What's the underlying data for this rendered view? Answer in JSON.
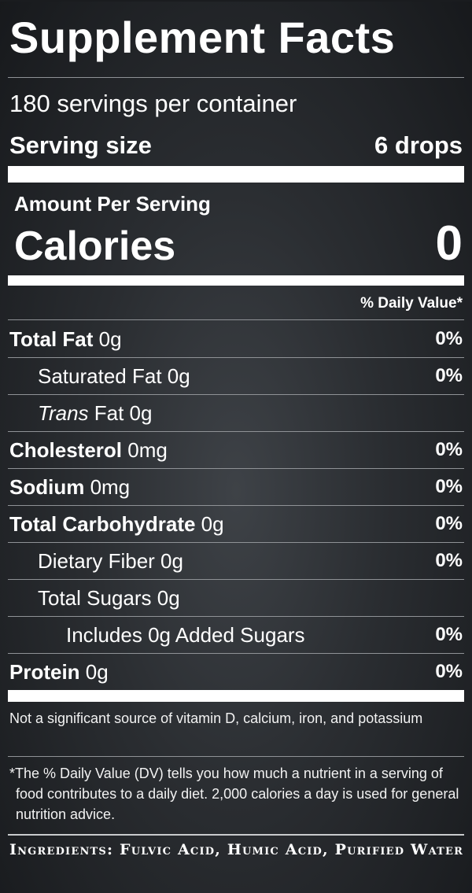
{
  "panel": {
    "title": "Supplement Facts",
    "servings_per_container": "180 servings per container",
    "serving_size_label": "Serving size",
    "serving_size_value": "6 drops",
    "amount_per_serving": "Amount Per Serving",
    "calories_label": "Calories",
    "calories_value": "0",
    "daily_value_header": "% Daily Value*",
    "nutrients": [
      {
        "name": "Total Fat",
        "amount": " 0g",
        "dv": "0%"
      },
      {
        "name": "Saturated Fat 0g",
        "amount": "",
        "dv": "0%"
      },
      {
        "name": "Trans",
        "amount": " Fat 0g",
        "dv": ""
      },
      {
        "name": "Cholesterol",
        "amount": " 0mg",
        "dv": "0%"
      },
      {
        "name": "Sodium",
        "amount": " 0mg",
        "dv": "0%"
      },
      {
        "name": "Total Carbohydrate",
        "amount": " 0g",
        "dv": "0%"
      },
      {
        "name": "Dietary Fiber 0g",
        "amount": "",
        "dv": "0%"
      },
      {
        "name": "Total Sugars 0g",
        "amount": "",
        "dv": ""
      },
      {
        "name": "Includes 0g Added Sugars",
        "amount": "",
        "dv": "0%"
      },
      {
        "name": "Protein",
        "amount": " 0g",
        "dv": "0%"
      }
    ],
    "not_significant_note": "Not a significant source of vitamin D, calcium, iron, and potassium",
    "dv_footnote": "*The % Daily Value (DV) tells you how much a nutrient in a serving of food contributes to a daily diet. 2,000 calories a day is used for general nutrition advice."
  },
  "ingredients": "Ingredients: Fulvic Acid, Humic Acid, Purified Water"
}
